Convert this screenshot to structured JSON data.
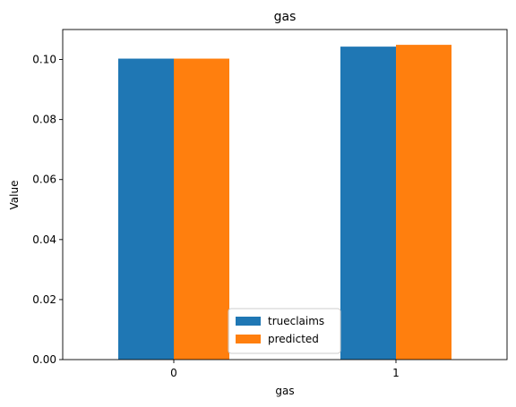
{
  "chart_data": {
    "type": "bar",
    "title": "gas",
    "xlabel": "gas",
    "ylabel": "Value",
    "categories": [
      "0",
      "1"
    ],
    "series": [
      {
        "name": "trueclaims",
        "values": [
          0.1003,
          0.1043
        ],
        "color": "#1f77b4"
      },
      {
        "name": "predicted",
        "values": [
          0.1003,
          0.1049
        ],
        "color": "#ff7f0e"
      }
    ],
    "ylim": [
      0,
      0.11
    ],
    "yticks": [
      0.0,
      0.02,
      0.04,
      0.06,
      0.08,
      0.1
    ],
    "ytick_labels": [
      "0.00",
      "0.02",
      "0.04",
      "0.06",
      "0.08",
      "0.10"
    ],
    "grid": false,
    "legend_position": "lower-center"
  }
}
